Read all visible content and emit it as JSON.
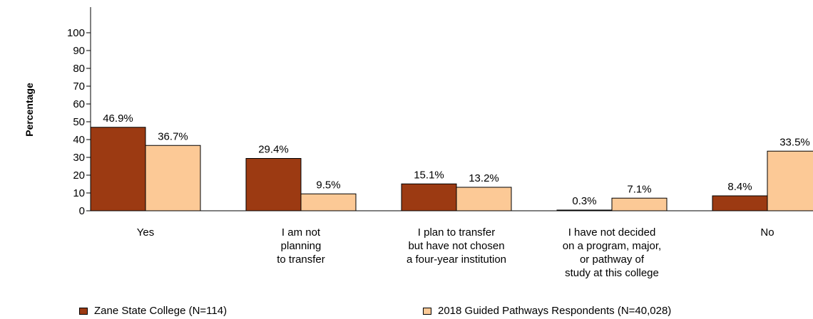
{
  "chart_data": {
    "type": "bar",
    "title": "",
    "xlabel": "",
    "ylabel": "Percentage",
    "ylim": [
      0,
      100
    ],
    "yticks": [
      0,
      10,
      20,
      30,
      40,
      50,
      60,
      70,
      80,
      90,
      100
    ],
    "grid": false,
    "legend_position": "bottom",
    "categories": [
      [
        "Yes"
      ],
      [
        "I am not",
        "planning",
        "to transfer"
      ],
      [
        "I plan to transfer",
        "but have not chosen",
        "a four-year institution"
      ],
      [
        "I have not decided",
        "on a program, major,",
        "or pathway of",
        "study at this college"
      ],
      [
        "No"
      ]
    ],
    "series": [
      {
        "name": "Zane State College (N=114)",
        "color": "#9c3a12",
        "values": [
          46.9,
          29.4,
          15.1,
          0.3,
          8.4
        ],
        "labels": [
          "46.9%",
          "29.4%",
          "15.1%",
          "0.3%",
          "8.4%"
        ]
      },
      {
        "name": "2018 Guided Pathways Respondents (N=40,028)",
        "color": "#fcc996",
        "values": [
          36.7,
          9.5,
          13.2,
          7.1,
          33.5
        ],
        "labels": [
          "36.7%",
          "9.5%",
          "13.2%",
          "7.1%",
          "33.5%"
        ]
      }
    ]
  }
}
